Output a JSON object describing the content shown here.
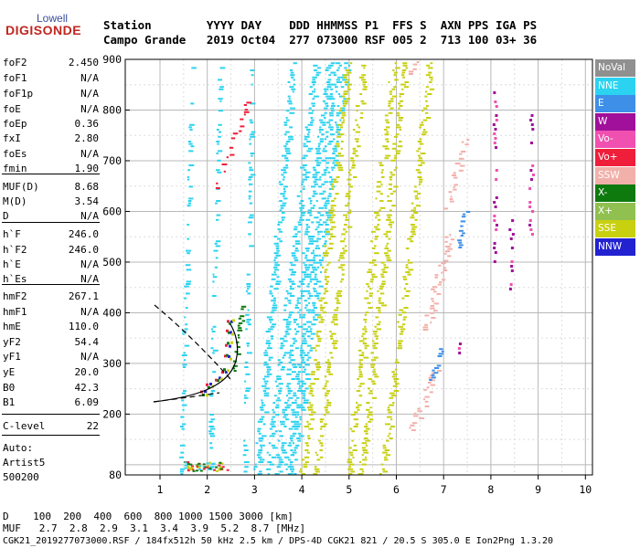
{
  "logo": {
    "top": "Lowell",
    "bottom": "DIGISONDE"
  },
  "header": {
    "line1": "Station        YYYY DAY    DDD HHMMSS P1  FFS S  AXN PPS IGA PS",
    "line2": "Campo Grande   2019 Oct04  277 073000 RSF 005 2  713 100 03+ 36"
  },
  "params": [
    {
      "name": "foF2",
      "value": "2.450"
    },
    {
      "name": "foF1",
      "value": "N/A"
    },
    {
      "name": "foF1p",
      "value": "N/A"
    },
    {
      "name": "foE",
      "value": "N/A"
    },
    {
      "name": "foEp",
      "value": "0.36"
    },
    {
      "name": "fxI",
      "value": "2.80"
    },
    {
      "name": "foEs",
      "value": "N/A"
    },
    {
      "name": "fmin",
      "value": "1.90"
    },
    {
      "name": "MUF(D)",
      "value": "8.68"
    },
    {
      "name": "M(D)",
      "value": "3.54"
    },
    {
      "name": "D",
      "value": "N/A"
    },
    {
      "name": "h`F",
      "value": "246.0"
    },
    {
      "name": "h`F2",
      "value": "246.0"
    },
    {
      "name": "h`E",
      "value": "N/A"
    },
    {
      "name": "h`Es",
      "value": "N/A"
    },
    {
      "name": "hmF2",
      "value": "267.1"
    },
    {
      "name": "hmF1",
      "value": "N/A"
    },
    {
      "name": "hmE",
      "value": "110.0"
    },
    {
      "name": "yF2",
      "value": "54.4"
    },
    {
      "name": "yF1",
      "value": "N/A"
    },
    {
      "name": "yE",
      "value": "20.0"
    },
    {
      "name": "B0",
      "value": "42.3"
    },
    {
      "name": "B1",
      "value": "6.09"
    },
    {
      "name": "C-level",
      "value": "22"
    }
  ],
  "auto": {
    "line1": "Auto:",
    "line2": "Artist5",
    "line3": "500200"
  },
  "legend": [
    {
      "label": "NoVal",
      "bg": "#909090",
      "fg": "#ffffff"
    },
    {
      "label": "NNE",
      "bg": "#2bd3f0",
      "fg": "#ffffff"
    },
    {
      "label": "E",
      "bg": "#3d8fe8",
      "fg": "#ffffff"
    },
    {
      "label": "W",
      "bg": "#a0109a",
      "fg": "#ffffff"
    },
    {
      "label": "Vo-",
      "bg": "#f050b0",
      "fg": "#ffffff"
    },
    {
      "label": "Vo+",
      "bg": "#ef1e3a",
      "fg": "#ffffff"
    },
    {
      "label": "SSW",
      "bg": "#f2b0aa",
      "fg": "#ffffff"
    },
    {
      "label": "X-",
      "bg": "#0e7a0e",
      "fg": "#ffffff"
    },
    {
      "label": "X+",
      "bg": "#90c050",
      "fg": "#ffffff"
    },
    {
      "label": "SSE",
      "bg": "#c8d010",
      "fg": "#ffffff"
    },
    {
      "label": "NNW",
      "bg": "#2222d0",
      "fg": "#ffffff"
    }
  ],
  "chart_data": {
    "type": "scatter",
    "x_ticks": [
      "1",
      "2",
      "3",
      "4",
      "5",
      "6",
      "7",
      "8",
      "9",
      "10"
    ],
    "y_ticks": [
      "900",
      "800",
      "700",
      "600",
      "500",
      "400",
      "300",
      "200",
      "80"
    ],
    "xlim": [
      0.85,
      10.1
    ],
    "ylim": [
      80,
      900
    ],
    "grid": true
  },
  "footer": {
    "d_line": "D    100  200  400  600  800 1000 1500 3000 [km]",
    "muf_line": "MUF   2.7  2.8  2.9  3.1  3.4  3.9  5.2  8.7 [MHz]",
    "info_line": "CGK21_2019277073000.RSF / 184fx512h 50 kHz 2.5 km / DPS-4D CGK21 821 / 20.5 S 305.0 E Ion2Png 1.3.20"
  }
}
